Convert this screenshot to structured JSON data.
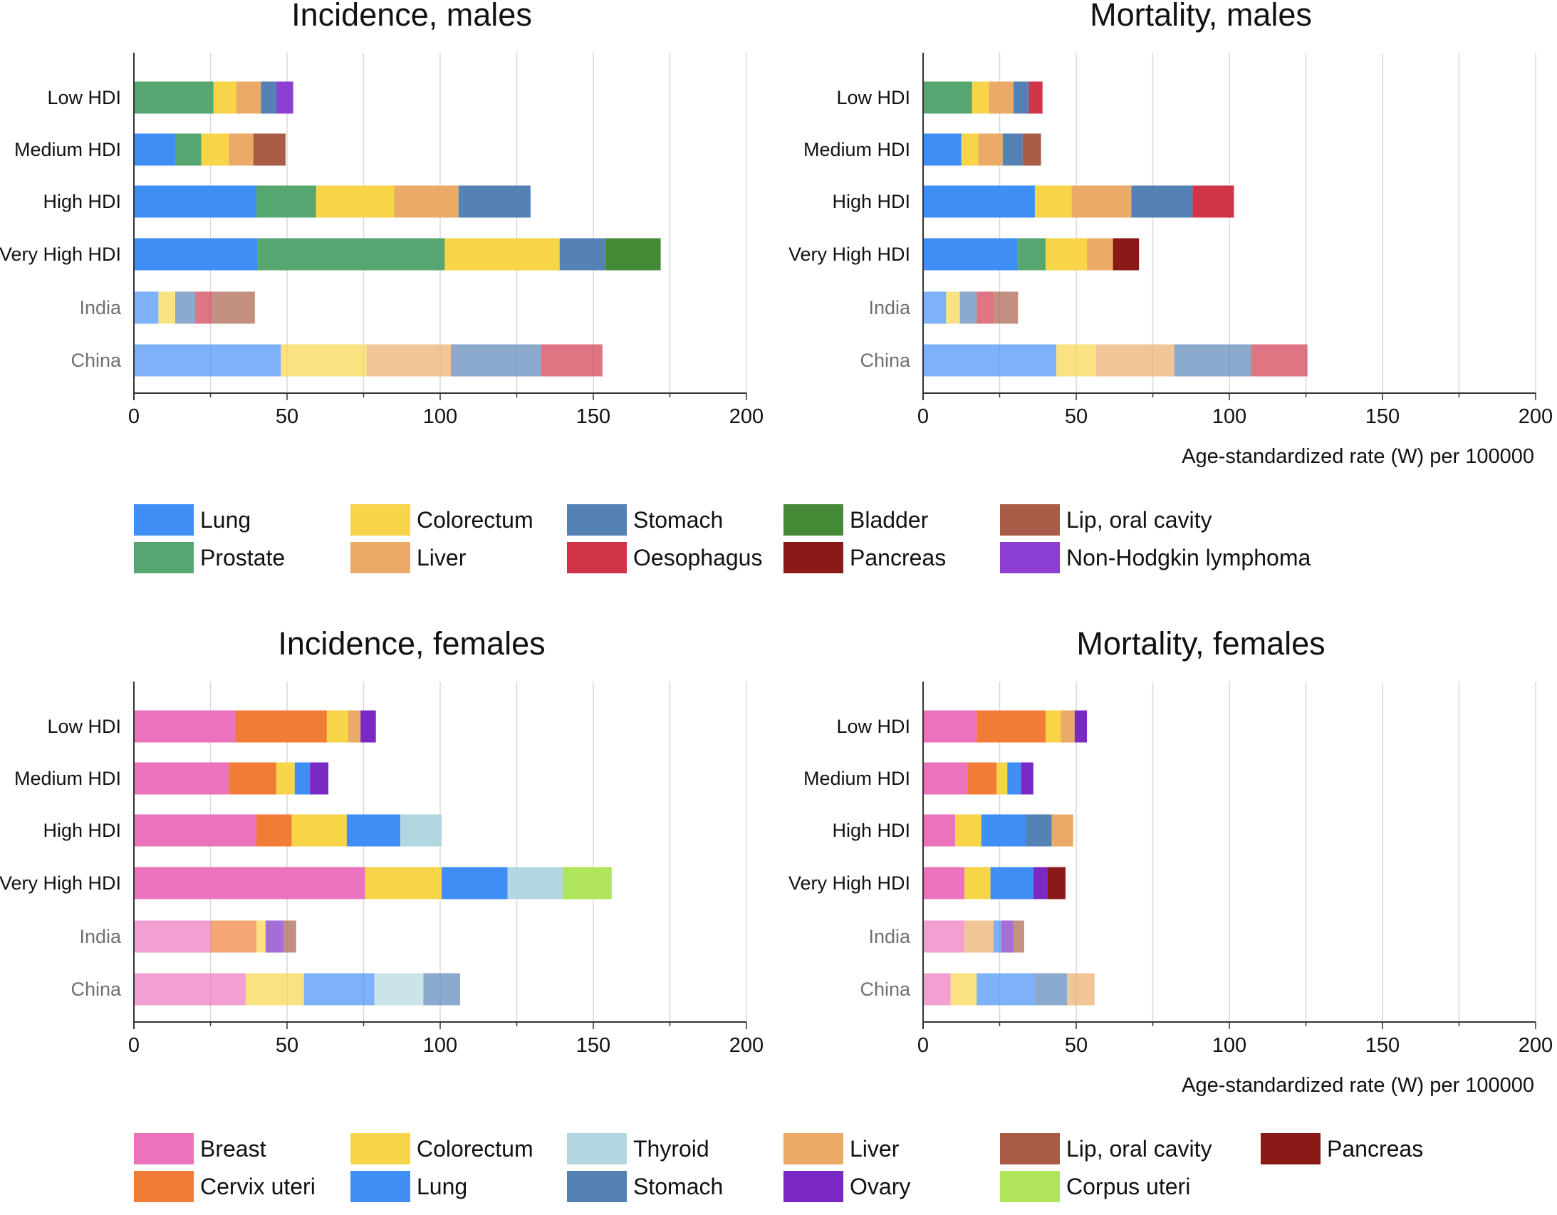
{
  "colors": {
    "lung": "#3f8ef5",
    "prostate": "#56a76f",
    "colorectum": "#f8d448",
    "liver": "#ebaa66",
    "stomach": "#5482b5",
    "oesophagus": "#d03448",
    "bladder": "#458a36",
    "pancreas": "#8a1a18",
    "lip": "#a85c45",
    "nhl": "#8c3fd2",
    "breast": "#ea73bb",
    "cervix": "#f07c37",
    "thyroid": "#b3d7e0",
    "ovary": "#7b29c4",
    "corpus": "#b0e45a"
  },
  "axis": {
    "ticks": [
      "0",
      "50",
      "100",
      "150",
      "200"
    ],
    "xlabel": "Age-standardized rate (W) per 100000"
  },
  "legend_males": [
    {
      "key": "lung",
      "label": "Lung"
    },
    {
      "key": "colorectum",
      "label": "Colorectum"
    },
    {
      "key": "stomach",
      "label": "Stomach"
    },
    {
      "key": "bladder",
      "label": "Bladder"
    },
    {
      "key": "lip",
      "label": "Lip, oral cavity"
    },
    {
      "key": "prostate",
      "label": "Prostate"
    },
    {
      "key": "liver",
      "label": "Liver"
    },
    {
      "key": "oesophagus",
      "label": "Oesophagus"
    },
    {
      "key": "pancreas",
      "label": "Pancreas"
    },
    {
      "key": "nhl",
      "label": "Non-Hodgkin lymphoma"
    }
  ],
  "legend_females": [
    {
      "key": "breast",
      "label": "Breast"
    },
    {
      "key": "colorectum",
      "label": "Colorectum"
    },
    {
      "key": "thyroid",
      "label": "Thyroid"
    },
    {
      "key": "liver",
      "label": "Liver"
    },
    {
      "key": "lip",
      "label": "Lip, oral cavity"
    },
    {
      "key": "pancreas",
      "label": "Pancreas"
    },
    {
      "key": "cervix",
      "label": "Cervix uteri"
    },
    {
      "key": "lung",
      "label": "Lung"
    },
    {
      "key": "stomach",
      "label": "Stomach"
    },
    {
      "key": "ovary",
      "label": "Ovary"
    },
    {
      "key": "corpus",
      "label": "Corpus uteri"
    }
  ],
  "chart_data": [
    {
      "type": "bar",
      "orientation": "horizontal",
      "stacked": true,
      "title": "Incidence, males",
      "xlim": [
        0,
        200
      ],
      "categories": [
        "Low HDI",
        "Medium HDI",
        "High HDI",
        "Very High HDI",
        "India",
        "China"
      ],
      "faded_categories": [
        "India",
        "China"
      ],
      "rows": [
        [
          {
            "key": "prostate",
            "value": 26
          },
          {
            "key": "colorectum",
            "value": 7.5
          },
          {
            "key": "liver",
            "value": 8
          },
          {
            "key": "stomach",
            "value": 5
          },
          {
            "key": "nhl",
            "value": 5.5
          }
        ],
        [
          {
            "key": "lung",
            "value": 13.5
          },
          {
            "key": "prostate",
            "value": 8.5
          },
          {
            "key": "colorectum",
            "value": 9
          },
          {
            "key": "liver",
            "value": 8
          },
          {
            "key": "lip",
            "value": 10.5
          }
        ],
        [
          {
            "key": "lung",
            "value": 40
          },
          {
            "key": "prostate",
            "value": 19.5
          },
          {
            "key": "colorectum",
            "value": 25.5
          },
          {
            "key": "liver",
            "value": 21
          },
          {
            "key": "stomach",
            "value": 23.5
          }
        ],
        [
          {
            "key": "lung",
            "value": 40.5
          },
          {
            "key": "prostate",
            "value": 61
          },
          {
            "key": "colorectum",
            "value": 37.5
          },
          {
            "key": "stomach",
            "value": 15
          },
          {
            "key": "bladder",
            "value": 18
          }
        ],
        [
          {
            "key": "lung",
            "value": 8
          },
          {
            "key": "colorectum",
            "value": 5.5
          },
          {
            "key": "stomach",
            "value": 6.5
          },
          {
            "key": "oesophagus",
            "value": 5.5
          },
          {
            "key": "lip",
            "value": 14
          }
        ],
        [
          {
            "key": "lung",
            "value": 48
          },
          {
            "key": "colorectum",
            "value": 28
          },
          {
            "key": "liver",
            "value": 27.5
          },
          {
            "key": "stomach",
            "value": 29.5
          },
          {
            "key": "oesophagus",
            "value": 20
          }
        ]
      ]
    },
    {
      "type": "bar",
      "orientation": "horizontal",
      "stacked": true,
      "title": "Mortality, males",
      "xlabel": "Age-standardized rate (W) per 100000",
      "xlim": [
        0,
        200
      ],
      "categories": [
        "Low HDI",
        "Medium HDI",
        "High HDI",
        "Very High HDI",
        "India",
        "China"
      ],
      "faded_categories": [
        "India",
        "China"
      ],
      "rows": [
        [
          {
            "key": "prostate",
            "value": 16
          },
          {
            "key": "colorectum",
            "value": 5.5
          },
          {
            "key": "liver",
            "value": 8
          },
          {
            "key": "stomach",
            "value": 5
          },
          {
            "key": "oesophagus",
            "value": 4.5
          }
        ],
        [
          {
            "key": "lung",
            "value": 12.5
          },
          {
            "key": "colorectum",
            "value": 5.5
          },
          {
            "key": "liver",
            "value": 8
          },
          {
            "key": "stomach",
            "value": 6.5
          },
          {
            "key": "lip",
            "value": 6
          }
        ],
        [
          {
            "key": "lung",
            "value": 36.5
          },
          {
            "key": "colorectum",
            "value": 12
          },
          {
            "key": "liver",
            "value": 19.5
          },
          {
            "key": "stomach",
            "value": 20
          },
          {
            "key": "oesophagus",
            "value": 13.5
          }
        ],
        [
          {
            "key": "lung",
            "value": 31
          },
          {
            "key": "prostate",
            "value": 9
          },
          {
            "key": "colorectum",
            "value": 13.5
          },
          {
            "key": "liver",
            "value": 8.5
          },
          {
            "key": "pancreas",
            "value": 8.5
          }
        ],
        [
          {
            "key": "lung",
            "value": 7.5
          },
          {
            "key": "colorectum",
            "value": 4.5
          },
          {
            "key": "stomach",
            "value": 5.5
          },
          {
            "key": "oesophagus",
            "value": 5.5
          },
          {
            "key": "lip",
            "value": 8
          }
        ],
        [
          {
            "key": "lung",
            "value": 43.5
          },
          {
            "key": "colorectum",
            "value": 13
          },
          {
            "key": "liver",
            "value": 25.5
          },
          {
            "key": "stomach",
            "value": 25
          },
          {
            "key": "oesophagus",
            "value": 18.5
          }
        ]
      ]
    },
    {
      "type": "bar",
      "orientation": "horizontal",
      "stacked": true,
      "title": "Incidence, females",
      "xlim": [
        0,
        200
      ],
      "categories": [
        "Low HDI",
        "Medium HDI",
        "High HDI",
        "Very High HDI",
        "India",
        "China"
      ],
      "faded_categories": [
        "India",
        "China"
      ],
      "rows": [
        [
          {
            "key": "breast",
            "value": 33
          },
          {
            "key": "cervix",
            "value": 30
          },
          {
            "key": "colorectum",
            "value": 7
          },
          {
            "key": "liver",
            "value": 4
          },
          {
            "key": "ovary",
            "value": 5
          }
        ],
        [
          {
            "key": "breast",
            "value": 31
          },
          {
            "key": "cervix",
            "value": 15.5
          },
          {
            "key": "colorectum",
            "value": 6
          },
          {
            "key": "lung",
            "value": 5
          },
          {
            "key": "ovary",
            "value": 6
          }
        ],
        [
          {
            "key": "breast",
            "value": 40
          },
          {
            "key": "cervix",
            "value": 11.5
          },
          {
            "key": "colorectum",
            "value": 18
          },
          {
            "key": "lung",
            "value": 17.5
          },
          {
            "key": "thyroid",
            "value": 13.5
          }
        ],
        [
          {
            "key": "breast",
            "value": 75.5
          },
          {
            "key": "colorectum",
            "value": 25
          },
          {
            "key": "lung",
            "value": 21.5
          },
          {
            "key": "thyroid",
            "value": 18
          },
          {
            "key": "corpus",
            "value": 16
          }
        ],
        [
          {
            "key": "breast",
            "value": 25
          },
          {
            "key": "cervix",
            "value": 15
          },
          {
            "key": "colorectum",
            "value": 3
          },
          {
            "key": "ovary",
            "value": 6
          },
          {
            "key": "lip",
            "value": 4
          }
        ],
        [
          {
            "key": "breast",
            "value": 36.5
          },
          {
            "key": "colorectum",
            "value": 19
          },
          {
            "key": "lung",
            "value": 23
          },
          {
            "key": "thyroid",
            "value": 16
          },
          {
            "key": "stomach",
            "value": 12
          }
        ]
      ]
    },
    {
      "type": "bar",
      "orientation": "horizontal",
      "stacked": true,
      "title": "Mortality, females",
      "xlabel": "Age-standardized rate (W) per 100000",
      "xlim": [
        0,
        200
      ],
      "categories": [
        "Low HDI",
        "Medium HDI",
        "High HDI",
        "Very High HDI",
        "India",
        "China"
      ],
      "faded_categories": [
        "India",
        "China"
      ],
      "rows": [
        [
          {
            "key": "breast",
            "value": 17.5
          },
          {
            "key": "cervix",
            "value": 22.5
          },
          {
            "key": "colorectum",
            "value": 5
          },
          {
            "key": "liver",
            "value": 4.5
          },
          {
            "key": "ovary",
            "value": 4
          }
        ],
        [
          {
            "key": "breast",
            "value": 14.5
          },
          {
            "key": "cervix",
            "value": 9.5
          },
          {
            "key": "colorectum",
            "value": 3.5
          },
          {
            "key": "lung",
            "value": 4.5
          },
          {
            "key": "ovary",
            "value": 4
          }
        ],
        [
          {
            "key": "breast",
            "value": 10.5
          },
          {
            "key": "colorectum",
            "value": 8.5
          },
          {
            "key": "lung",
            "value": 14.5
          },
          {
            "key": "stomach",
            "value": 8.5
          },
          {
            "key": "liver",
            "value": 7
          }
        ],
        [
          {
            "key": "breast",
            "value": 13.5
          },
          {
            "key": "colorectum",
            "value": 8.5
          },
          {
            "key": "lung",
            "value": 14
          },
          {
            "key": "ovary",
            "value": 4.5
          },
          {
            "key": "pancreas",
            "value": 6
          }
        ],
        [
          {
            "key": "breast",
            "value": 13.5
          },
          {
            "key": "liver",
            "value": 9.5
          },
          {
            "key": "lung",
            "value": 2.5
          },
          {
            "key": "ovary",
            "value": 4
          },
          {
            "key": "lip",
            "value": 3.5
          }
        ],
        [
          {
            "key": "breast",
            "value": 9
          },
          {
            "key": "colorectum",
            "value": 8.5
          },
          {
            "key": "lung",
            "value": 19
          },
          {
            "key": "stomach",
            "value": 10.5
          },
          {
            "key": "liver",
            "value": 9
          }
        ]
      ]
    }
  ]
}
